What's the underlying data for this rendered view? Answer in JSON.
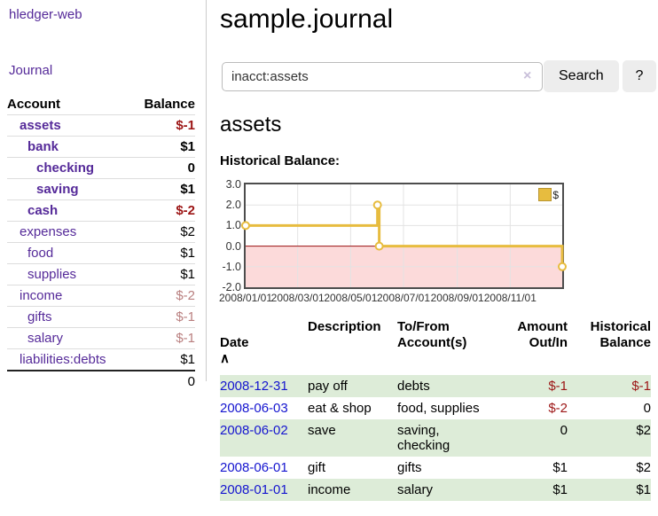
{
  "app": {
    "title": "hledger-web"
  },
  "sidebar": {
    "journal_link": "Journal",
    "accounts": {
      "header": {
        "account": "Account",
        "balance": "Balance"
      },
      "rows": [
        {
          "name": "assets",
          "balance": "$-1"
        },
        {
          "name": "bank",
          "balance": "$1"
        },
        {
          "name": "checking",
          "balance": "0"
        },
        {
          "name": "saving",
          "balance": "$1"
        },
        {
          "name": "cash",
          "balance": "$-2"
        },
        {
          "name": "expenses",
          "balance": "$2"
        },
        {
          "name": "food",
          "balance": "$1"
        },
        {
          "name": "supplies",
          "balance": "$1"
        },
        {
          "name": "income",
          "balance": "$-2"
        },
        {
          "name": "gifts",
          "balance": "$-1"
        },
        {
          "name": "salary",
          "balance": "$-1"
        },
        {
          "name": "liabilities:debts",
          "balance": "$1"
        }
      ],
      "total": "0"
    }
  },
  "main": {
    "title": "sample.journal",
    "search": {
      "value": "inacct:assets",
      "clear_icon": "×",
      "search_button": "Search",
      "help_button": "?"
    },
    "account_heading": "assets",
    "chart_title": "Historical Balance:"
  },
  "chart_data": {
    "type": "line",
    "step": true,
    "title": "Historical Balance",
    "ylim": [
      -2,
      3
    ],
    "y_ticks": [
      3.0,
      2.0,
      1.0,
      0.0,
      -1.0,
      -2.0
    ],
    "x_axis": {
      "start_day": 0,
      "end_day": 365,
      "ticks": [
        {
          "label": "2008/01/01",
          "day": 0
        },
        {
          "label": "2008/03/01",
          "day": 60
        },
        {
          "label": "2008/05/01",
          "day": 121
        },
        {
          "label": "2008/07/01",
          "day": 182
        },
        {
          "label": "2008/09/01",
          "day": 244
        },
        {
          "label": "2008/11/01",
          "day": 305
        }
      ]
    },
    "series": [
      {
        "name": "$",
        "color": "#e7bc3f",
        "points": [
          {
            "date": "2008-01-01",
            "day": 0,
            "value": 1
          },
          {
            "date": "2008-06-01",
            "day": 152,
            "value": 2
          },
          {
            "date": "2008-06-03",
            "day": 154,
            "value": 0
          },
          {
            "date": "2008-12-31",
            "day": 365,
            "value": -1
          }
        ]
      }
    ],
    "legend": {
      "label": "$",
      "position": "top-right"
    },
    "grid": true,
    "gridline_color": "#e3e3e3",
    "negative_region_fill": "#fcdada",
    "zero_line_color": "#9c1010"
  },
  "register": {
    "headers": {
      "date": "Date",
      "sort_icon": "∧",
      "description": "Description",
      "accounts": "To/From\nAccount(s)",
      "amount": "Amount\nOut/In",
      "balance": "Historical\nBalance"
    },
    "rows": [
      {
        "date": "2008-12-31",
        "description": "pay off",
        "accounts": "debts",
        "amount": "$-1",
        "balance": "$-1"
      },
      {
        "date": "2008-06-03",
        "description": "eat & shop",
        "accounts": "food, supplies",
        "amount": "$-2",
        "balance": "0"
      },
      {
        "date": "2008-06-02",
        "description": "save",
        "accounts": "saving, checking",
        "amount": "0",
        "balance": "$2"
      },
      {
        "date": "2008-06-01",
        "description": "gift",
        "accounts": "gifts",
        "amount": "$1",
        "balance": "$2"
      },
      {
        "date": "2008-01-01",
        "description": "income",
        "accounts": "salary",
        "amount": "$1",
        "balance": "$1"
      }
    ]
  }
}
